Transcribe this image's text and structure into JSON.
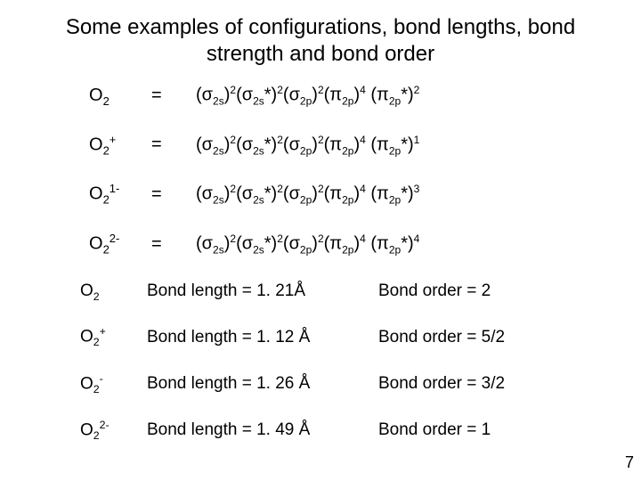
{
  "title": "Some examples of configurations, bond lengths, bond strength and bond order",
  "title_fontsize": 24,
  "body_fontsize": 20,
  "text_color": "#000000",
  "background_color": "#ffffff",
  "page_number": "7",
  "configurations": [
    {
      "species_base": "O",
      "species_sub": "2",
      "species_sup": "",
      "eq": "=",
      "orbitals": [
        {
          "sym": "σ",
          "sub": "2s",
          "star": false,
          "occ": "2"
        },
        {
          "sym": "σ",
          "sub": "2s",
          "star": true,
          "occ": "2"
        },
        {
          "sym": "σ",
          "sub": "2p",
          "star": false,
          "occ": "2"
        },
        {
          "sym": "π",
          "sub": "2p",
          "star": false,
          "occ": "4"
        },
        {
          "sym": "π",
          "sub": "2p",
          "star": true,
          "occ": "2"
        }
      ]
    },
    {
      "species_base": "O",
      "species_sub": "2",
      "species_sup": "+",
      "eq": "=",
      "orbitals": [
        {
          "sym": "σ",
          "sub": "2s",
          "star": false,
          "occ": "2"
        },
        {
          "sym": "σ",
          "sub": "2s",
          "star": true,
          "occ": "2"
        },
        {
          "sym": "σ",
          "sub": "2p",
          "star": false,
          "occ": "2"
        },
        {
          "sym": "π",
          "sub": "2p",
          "star": false,
          "occ": "4"
        },
        {
          "sym": "π",
          "sub": "2p",
          "star": true,
          "occ": "1"
        }
      ]
    },
    {
      "species_base": "O",
      "species_sub": "2",
      "species_sup": "1-",
      "eq": "=",
      "orbitals": [
        {
          "sym": "σ",
          "sub": "2s",
          "star": false,
          "occ": "2"
        },
        {
          "sym": "σ",
          "sub": "2s",
          "star": true,
          "occ": "2"
        },
        {
          "sym": "σ",
          "sub": "2p",
          "star": false,
          "occ": "2"
        },
        {
          "sym": "π",
          "sub": "2p",
          "star": false,
          "occ": "4"
        },
        {
          "sym": "π",
          "sub": "2p",
          "star": true,
          "occ": "3"
        }
      ]
    },
    {
      "species_base": "O",
      "species_sub": "2",
      "species_sup": "2-",
      "eq": "=",
      "orbitals": [
        {
          "sym": "σ",
          "sub": "2s",
          "star": false,
          "occ": "2"
        },
        {
          "sym": "σ",
          "sub": "2s",
          "star": true,
          "occ": "2"
        },
        {
          "sym": "σ",
          "sub": "2p",
          "star": false,
          "occ": "2"
        },
        {
          "sym": "π",
          "sub": "2p",
          "star": false,
          "occ": "4"
        },
        {
          "sym": "π",
          "sub": "2p",
          "star": true,
          "occ": "4"
        }
      ]
    }
  ],
  "properties": [
    {
      "species_base": "O",
      "species_sub": "2",
      "species_sup": "",
      "bond_length": "Bond length = 1. 21Å",
      "bond_order": "Bond order = 2"
    },
    {
      "species_base": "O",
      "species_sub": "2",
      "species_sup": "+",
      "bond_length": "Bond length = 1. 12 Å",
      "bond_order": "Bond order = 5/2"
    },
    {
      "species_base": "O",
      "species_sub": "2",
      "species_sup": "-",
      "bond_length": "Bond length = 1. 26 Å",
      "bond_order": "Bond order = 3/2"
    },
    {
      "species_base": "O",
      "species_sub": "2",
      "species_sup": "2-",
      "bond_length": "Bond length = 1. 49 Å",
      "bond_order": "Bond order = 1"
    }
  ]
}
